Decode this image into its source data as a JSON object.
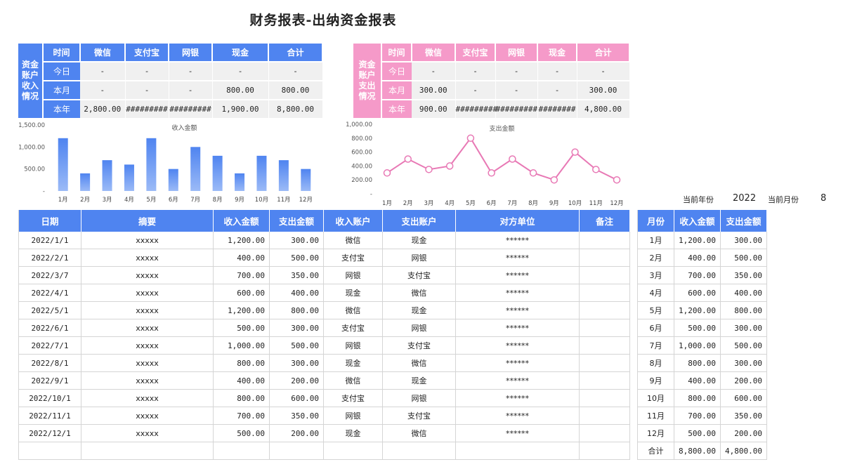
{
  "title": "财务报表-出纳资金报表",
  "income_summary": {
    "side_label": [
      "资金",
      "账户",
      "收入",
      "情况"
    ],
    "headers": [
      "时间",
      "微信",
      "支付宝",
      "网银",
      "现金",
      "合计"
    ],
    "rows": [
      [
        "今日",
        "-",
        "-",
        "-",
        "-",
        "-"
      ],
      [
        "本月",
        "-",
        "-",
        "-",
        "800.00",
        "800.00"
      ],
      [
        "本年",
        "2,800.00",
        "#########",
        "#########",
        "1,900.00",
        "8,800.00"
      ]
    ]
  },
  "expense_summary": {
    "side_label": [
      "资金",
      "账户",
      "支出",
      "情况"
    ],
    "headers": [
      "时间",
      "微信",
      "支付宝",
      "网银",
      "现金",
      "合计"
    ],
    "rows": [
      [
        "今日",
        "-",
        "-",
        "-",
        "-",
        "-"
      ],
      [
        "本月",
        "300.00",
        "-",
        "-",
        "-",
        "300.00"
      ],
      [
        "本年",
        "900.00",
        "#########",
        "#########",
        "########",
        "4,800.00"
      ]
    ]
  },
  "colors": {
    "income_accent": "#4f84f0",
    "expense_accent": "#f59ac9",
    "expense_line": "#e879b5"
  },
  "chart_data": [
    {
      "type": "bar",
      "title": "收入金额",
      "categories": [
        "1月",
        "2月",
        "3月",
        "4月",
        "5月",
        "6月",
        "7月",
        "8月",
        "9月",
        "10月",
        "11月",
        "12月"
      ],
      "values": [
        1200,
        400,
        700,
        600,
        1200,
        500,
        1000,
        800,
        400,
        800,
        700,
        500
      ],
      "ylim": [
        0,
        1500
      ],
      "yticks": [
        "1,500.00",
        "1,000.00",
        "500.00",
        "-"
      ],
      "ytick_values": [
        1500,
        1000,
        500,
        0
      ]
    },
    {
      "type": "line",
      "title": "支出金额",
      "categories": [
        "1月",
        "2月",
        "3月",
        "4月",
        "5月",
        "6月",
        "7月",
        "8月",
        "9月",
        "10月",
        "11月",
        "12月"
      ],
      "values": [
        300,
        500,
        350,
        400,
        800,
        300,
        500,
        300,
        200,
        600,
        350,
        200
      ],
      "ylim": [
        0,
        1000
      ],
      "yticks": [
        "1,000.00",
        "800.00",
        "600.00",
        "400.00",
        "200.00",
        "-"
      ],
      "ytick_values": [
        1000,
        800,
        600,
        400,
        200,
        0
      ]
    }
  ],
  "current": {
    "year_label": "当前年份",
    "year": "2022",
    "month_label": "当前月份",
    "month": "8"
  },
  "main_table": {
    "headers": [
      "日期",
      "摘要",
      "收入金额",
      "支出金额",
      "收入账户",
      "支出账户",
      "对方单位",
      "备注"
    ],
    "rows": [
      [
        "2022/1/1",
        "xxxxx",
        "1,200.00",
        "300.00",
        "微信",
        "现金",
        "******",
        ""
      ],
      [
        "2022/2/1",
        "xxxxx",
        "400.00",
        "500.00",
        "支付宝",
        "网银",
        "******",
        ""
      ],
      [
        "2022/3/7",
        "xxxxx",
        "700.00",
        "350.00",
        "网银",
        "支付宝",
        "******",
        ""
      ],
      [
        "2022/4/1",
        "xxxxx",
        "600.00",
        "400.00",
        "现金",
        "微信",
        "******",
        ""
      ],
      [
        "2022/5/1",
        "xxxxx",
        "1,200.00",
        "800.00",
        "微信",
        "现金",
        "******",
        ""
      ],
      [
        "2022/6/1",
        "xxxxx",
        "500.00",
        "300.00",
        "支付宝",
        "网银",
        "******",
        ""
      ],
      [
        "2022/7/1",
        "xxxxx",
        "1,000.00",
        "500.00",
        "网银",
        "支付宝",
        "******",
        ""
      ],
      [
        "2022/8/1",
        "xxxxx",
        "800.00",
        "300.00",
        "现金",
        "微信",
        "******",
        ""
      ],
      [
        "2022/9/1",
        "xxxxx",
        "400.00",
        "200.00",
        "微信",
        "现金",
        "******",
        ""
      ],
      [
        "2022/10/1",
        "xxxxx",
        "800.00",
        "600.00",
        "支付宝",
        "网银",
        "******",
        ""
      ],
      [
        "2022/11/1",
        "xxxxx",
        "700.00",
        "350.00",
        "网银",
        "支付宝",
        "******",
        ""
      ],
      [
        "2022/12/1",
        "xxxxx",
        "500.00",
        "200.00",
        "现金",
        "微信",
        "******",
        ""
      ],
      [
        "",
        "",
        "",
        "",
        "",
        "",
        "",
        ""
      ]
    ]
  },
  "monthly_table": {
    "headers": [
      "月份",
      "收入金额",
      "支出金额"
    ],
    "rows": [
      [
        "1月",
        "1,200.00",
        "300.00"
      ],
      [
        "2月",
        "400.00",
        "500.00"
      ],
      [
        "3月",
        "700.00",
        "350.00"
      ],
      [
        "4月",
        "600.00",
        "400.00"
      ],
      [
        "5月",
        "1,200.00",
        "800.00"
      ],
      [
        "6月",
        "500.00",
        "300.00"
      ],
      [
        "7月",
        "1,000.00",
        "500.00"
      ],
      [
        "8月",
        "800.00",
        "300.00"
      ],
      [
        "9月",
        "400.00",
        "200.00"
      ],
      [
        "10月",
        "800.00",
        "600.00"
      ],
      [
        "11月",
        "700.00",
        "350.00"
      ],
      [
        "12月",
        "500.00",
        "200.00"
      ],
      [
        "合计",
        "8,800.00",
        "4,800.00"
      ]
    ]
  }
}
